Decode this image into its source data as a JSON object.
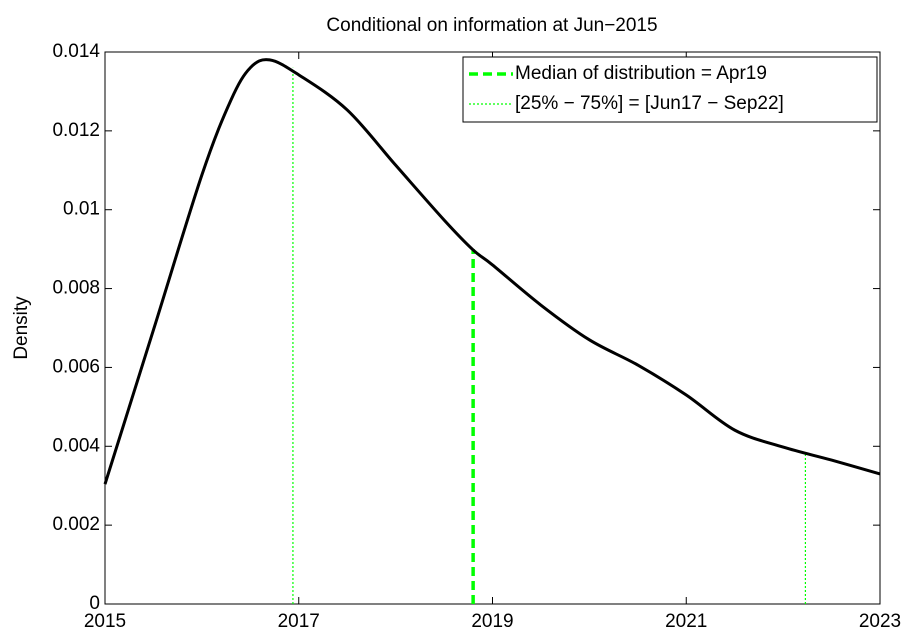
{
  "chart_data": {
    "type": "line",
    "title": "Conditional on information at Jun−2015",
    "ylabel": "Density",
    "x": [
      2015.0,
      2015.5,
      2016.0,
      2016.3,
      2016.5,
      2016.7,
      2017.0,
      2017.5,
      2018.0,
      2018.5,
      2018.8,
      2019.0,
      2019.5,
      2020.0,
      2020.5,
      2021.0,
      2021.5,
      2022.0,
      2022.5,
      2023.0
    ],
    "values": [
      0.00304,
      0.00695,
      0.01088,
      0.01278,
      0.0136,
      0.0138,
      0.01342,
      0.01253,
      0.01113,
      0.00974,
      0.00898,
      0.0086,
      0.00758,
      0.0067,
      0.00606,
      0.0053,
      0.00441,
      0.00398,
      0.00365,
      0.0033
    ],
    "color": "#000000",
    "series": [
      {
        "name": "Median of distribution = Apr19",
        "color": "#00ff00",
        "style": "dashed",
        "x": [
          2018.8
        ],
        "values": [
          0.009
        ]
      },
      {
        "name": "[25% − 75%] = [Jun17 − Sep22]",
        "color": "#00ff00",
        "style": "dotted",
        "x": [
          2016.94,
          2022.23
        ],
        "values": [
          0.0136,
          0.0038
        ]
      }
    ],
    "xlim": [
      2015,
      2023
    ],
    "xticks": [
      2015,
      2017,
      2019,
      2021,
      2023
    ],
    "ylim": [
      0,
      0.014
    ],
    "yticks": [
      0,
      0.002,
      0.004,
      0.006,
      0.008,
      0.01,
      0.012,
      0.014
    ],
    "legend": "upper-right"
  }
}
